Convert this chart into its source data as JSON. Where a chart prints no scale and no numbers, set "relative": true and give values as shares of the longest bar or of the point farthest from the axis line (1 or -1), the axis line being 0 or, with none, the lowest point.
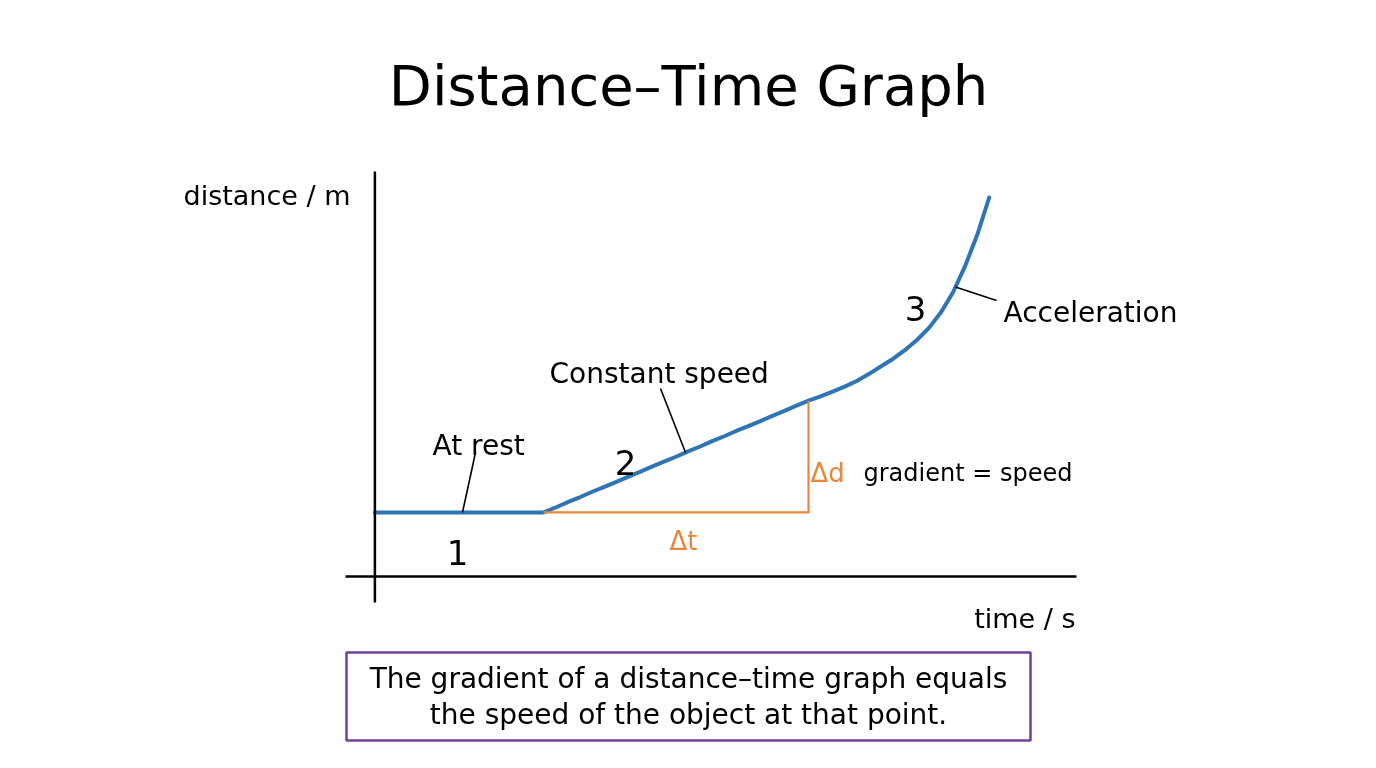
{
  "chart_data": {
    "type": "line",
    "title": "Distance–Time Graph",
    "xlabel": "time / s",
    "ylabel": "distance / m",
    "relative": true,
    "categories": [
      null,
      null,
      null,
      null,
      null,
      null,
      null,
      null,
      null,
      null,
      null,
      null,
      null,
      null,
      null,
      null,
      null,
      null,
      null,
      null,
      null,
      null,
      null,
      null,
      null,
      null,
      null,
      null,
      null,
      null,
      null,
      null,
      null,
      null,
      null,
      null,
      null,
      null,
      null,
      null,
      null,
      null,
      null,
      null,
      null,
      null,
      null,
      null,
      null,
      null,
      null,
      null
    ],
    "series": [
      {
        "color": "#2f74b5",
        "values": [
          0.169,
          0.169,
          0.169,
          0.169,
          0.169,
          0.169,
          0.169,
          0.169,
          0.169,
          0.169,
          0.169,
          0.169,
          0.169,
          0.169,
          0.169,
          0.182,
          0.196,
          0.209,
          0.223,
          0.236,
          0.249,
          0.263,
          0.276,
          0.29,
          0.303,
          0.316,
          0.33,
          0.343,
          0.357,
          0.37,
          0.384,
          0.397,
          0.41,
          0.424,
          0.437,
          0.451,
          0.464,
          0.475,
          0.488,
          0.501,
          0.516,
          0.534,
          0.554,
          0.574,
          0.597,
          0.624,
          0.656,
          0.697,
          0.75,
          0.819,
          0.901,
          1.0
        ]
      },
      {
        "type": "step",
        "color": "#e8873a",
        "values": [
          null,
          null,
          null,
          null,
          null,
          null,
          null,
          null,
          null,
          null,
          null,
          null,
          null,
          null,
          0.169,
          0.169,
          0.169,
          0.169,
          0.169,
          0.169,
          0.169,
          0.169,
          0.169,
          0.169,
          0.169,
          0.169,
          0.169,
          0.169,
          0.169,
          0.169,
          0.169,
          0.169,
          0.169,
          0.169,
          0.169,
          0.169,
          0.464,
          null,
          null,
          null,
          null,
          null,
          null,
          null,
          null,
          null,
          null,
          null,
          null,
          null,
          null,
          null
        ]
      }
    ],
    "annotations": [
      "At rest",
      "Constant speed",
      "Acceleration",
      "1",
      "2",
      "3",
      "Δt",
      "Δd",
      "gradient = speed",
      "The gradient of a distance–time graph equals the speed of the object at that point."
    ]
  }
}
